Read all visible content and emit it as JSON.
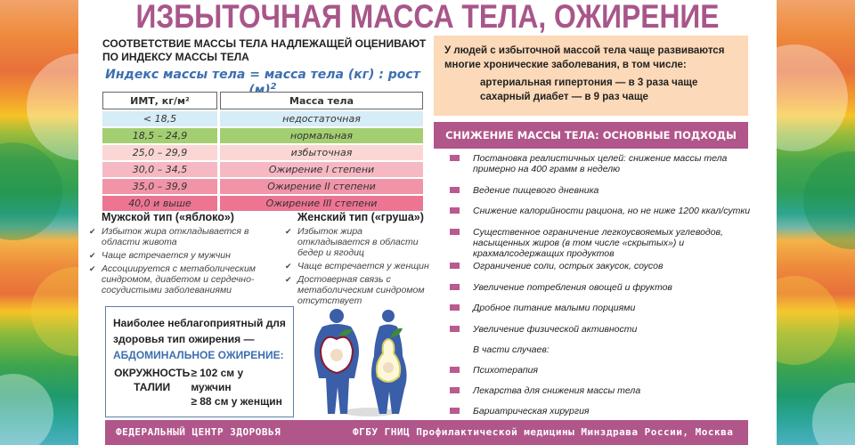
{
  "title": "ИЗБЫТОЧНАЯ МАССА ТЕЛА, ОЖИРЕНИЕ",
  "intro": "СООТВЕТСТВИЕ МАССЫ ТЕЛА НАДЛЕЖАЩЕЙ ОЦЕНИВАЮТ ПО ИНДЕКСУ МАССЫ ТЕЛА",
  "formula": {
    "text": "Индекс массы тела = масса тела (кг) : рост (м)",
    "sup": "2"
  },
  "bmi_table": {
    "headers": [
      "ИМТ, кг/м²",
      "Масса тела"
    ],
    "rows": [
      {
        "bmi": "< 18,5",
        "mass": "недостаточная",
        "color": "#d6ecf7"
      },
      {
        "bmi": "18,5 – 24,9",
        "mass": "нормальная",
        "color": "#a3cf72"
      },
      {
        "bmi": "25,0 – 29,9",
        "mass": "избыточная",
        "color": "#fad6d4"
      },
      {
        "bmi": "30,0 – 34,5",
        "mass": "Ожирение I степени",
        "color": "#f6b9c3"
      },
      {
        "bmi": "35,0 – 39,9",
        "mass": "Ожирение II степени",
        "color": "#f194a8"
      },
      {
        "bmi": "40,0 и выше",
        "mass": "Ожирение III степени",
        "color": "#ed7592"
      }
    ]
  },
  "male_type": {
    "title": "Мужской тип («яблоко»)",
    "items": [
      "Избыток жира откладывается в области живота",
      "Чаще встречается у мужчин",
      "Ассоциируется с метаболическим синдромом, диабетом и сердечно-сосудистыми заболеваниями"
    ]
  },
  "female_type": {
    "title": "Женский тип («груша»)",
    "items": [
      "Избыток жира откладывается в области бедер и ягодиц",
      "Чаще встречается у женщин",
      "Достоверная связь с метаболическим синдромом отсутствует"
    ]
  },
  "abdominal": {
    "line1": "Наиболее неблагоприятный для",
    "line2": "здоровья тип ожирения —",
    "highlight": "АБДОМИНАЛЬНОЕ ОЖИРЕНИЕ:",
    "waist_label1": "ОКРУЖНОСТЬ",
    "waist_label2": "ТАЛИИ",
    "men": "≥ 102 см у мужчин",
    "women": "≥ 88 см у женщин"
  },
  "diseases": {
    "text": "У людей с избыточной массой тела чаще развиваются многие хронические заболевания, в том числе:",
    "item1": "артериальная гипертония — в 3 раза чаще",
    "item2": "сахарный диабет — в 9 раз чаще"
  },
  "approaches": {
    "header": "СНИЖЕНИЕ МАССЫ ТЕЛА: ОСНОВНЫЕ ПОДХОДЫ",
    "items": [
      "Постановка реалистичных целей: снижение массы тела примерно на 400 грамм в неделю",
      "Ведение пищевого дневника",
      "Снижение калорийности рациона, но не ниже 1200 ккал/сутки",
      "Существенное ограничение легкоусвояемых углеводов, насыщенных жиров (в том числе «скрытых») и крахмалсодержащих продуктов",
      "Ограничение соли, острых закусок, соусов",
      "Увеличение потребления овощей и фруктов",
      "Дробное питание малыми порциями",
      "Увеличение физической активности"
    ],
    "sometimes": "В части случаев:",
    "extra_items": [
      "Психотерапия",
      "Лекарства для снижения массы тела",
      "Бариатрическая хирургия"
    ]
  },
  "footer": {
    "left": "ФЕДЕРАЛЬНЫЙ ЦЕНТР ЗДОРОВЬЯ",
    "right": "ФГБУ ГНИЦ Профилактической медицины Минздрава России,  Москва"
  },
  "colors": {
    "accent": "#b0568a",
    "title": "#a8568a",
    "formula_blue": "#3d6fb0",
    "peach": "#fcd9b8",
    "figure_blue": "#3a5ea8"
  }
}
